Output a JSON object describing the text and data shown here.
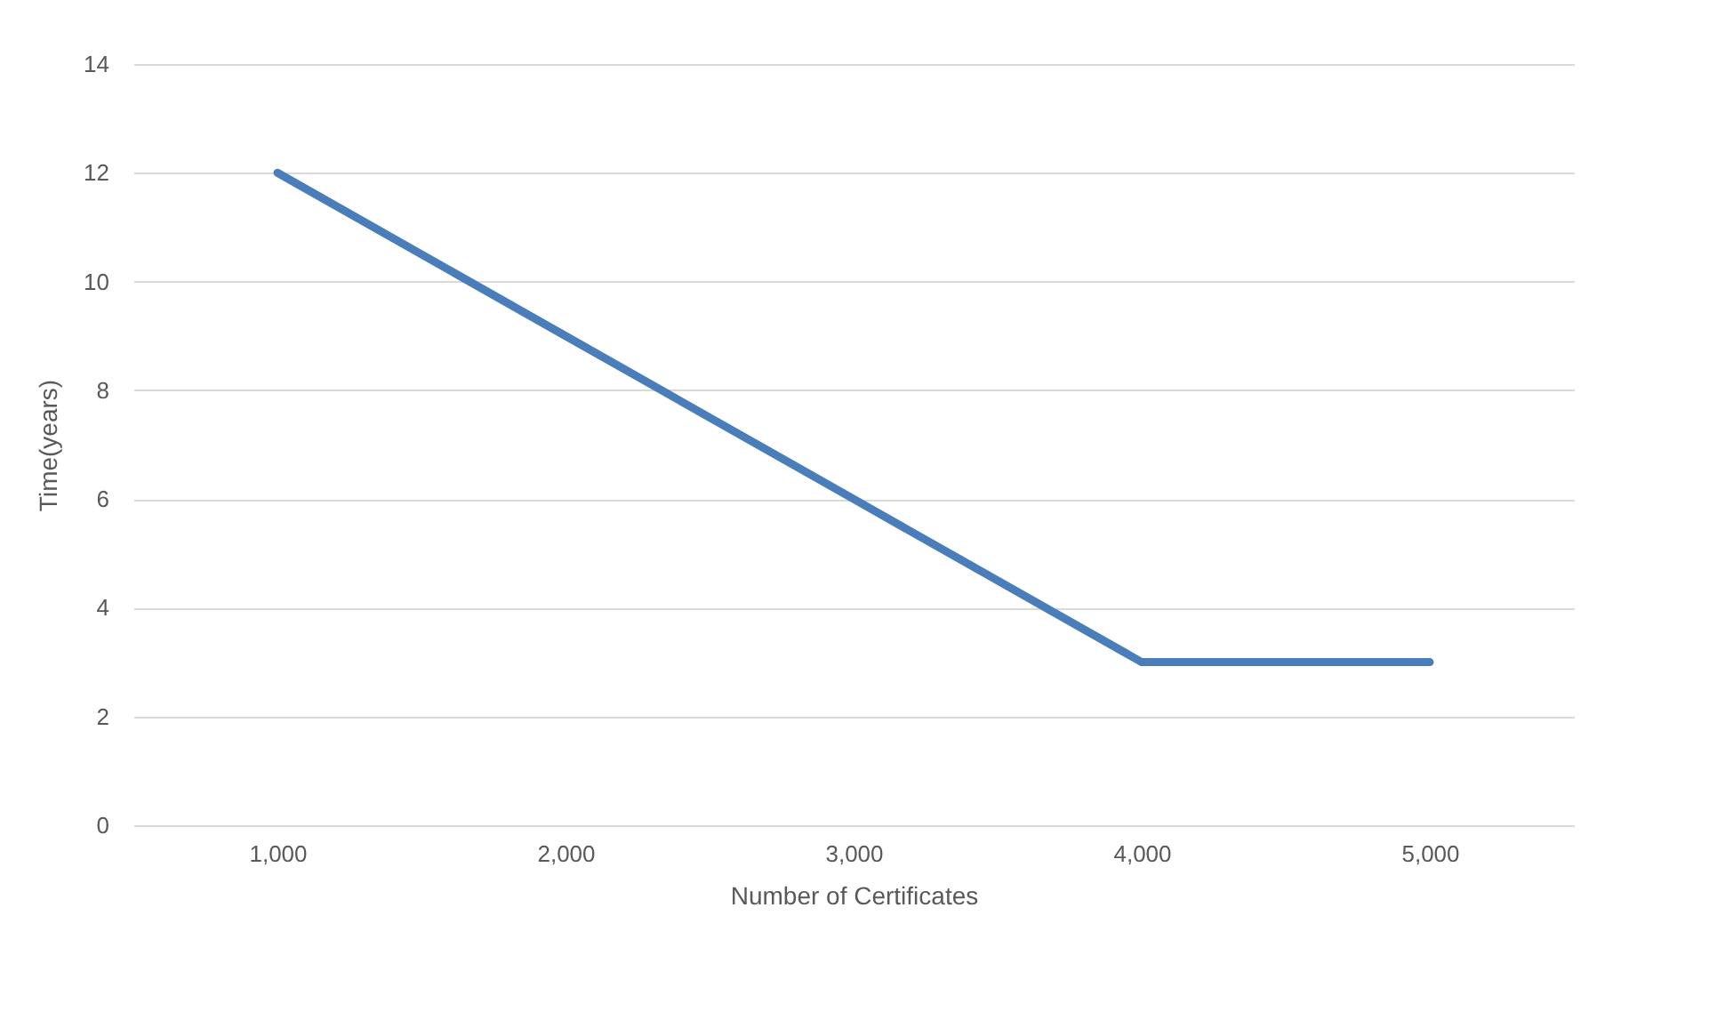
{
  "chart_data": {
    "type": "line",
    "xlabel": "Number of Certificates",
    "ylabel": "Time(years)",
    "categories": [
      "1,000",
      "2,000",
      "3,000",
      "4,000",
      "5,000"
    ],
    "series": [
      {
        "color": "#4a7ebb",
        "values": [
          12,
          9,
          6,
          3,
          3
        ]
      }
    ],
    "ylim": [
      0,
      14
    ],
    "yticks": [
      0,
      2,
      4,
      6,
      8,
      10,
      12,
      14
    ],
    "grid": "y",
    "marker": "none",
    "line_style": "solid"
  }
}
